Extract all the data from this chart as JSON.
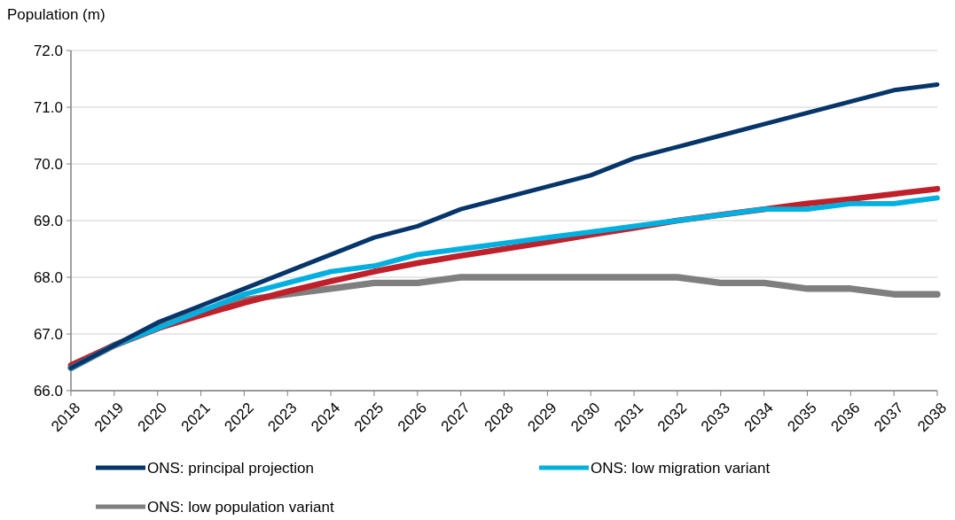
{
  "chart_data": {
    "type": "line",
    "ylabel": "Population (m)",
    "categories": [
      "2018",
      "2019",
      "2020",
      "2021",
      "2022",
      "2023",
      "2024",
      "2025",
      "2026",
      "2027",
      "2028",
      "2029",
      "2030",
      "2031",
      "2032",
      "2033",
      "2034",
      "2035",
      "2036",
      "2037",
      "2038"
    ],
    "ylim": [
      66,
      72
    ],
    "yticks": [
      {
        "value": 66,
        "label": "66.0"
      },
      {
        "value": 67,
        "label": "67.0"
      },
      {
        "value": 68,
        "label": "68.0"
      },
      {
        "value": 69,
        "label": "69.0"
      },
      {
        "value": 70,
        "label": "70.0"
      },
      {
        "value": 71,
        "label": "71.0"
      },
      {
        "value": 72,
        "label": "72.0"
      }
    ],
    "grid": "y",
    "legend": "bottom",
    "marker": "none",
    "line_style": "solid",
    "series": [
      {
        "name": "ONS: low population variant",
        "color": "#7f7f7f",
        "values": [
          66.4,
          66.8,
          67.1,
          67.4,
          67.6,
          67.7,
          67.8,
          67.9,
          67.9,
          68.0,
          68.0,
          68.0,
          68.0,
          68.0,
          68.0,
          67.9,
          67.9,
          67.8,
          67.8,
          67.7,
          67.7
        ]
      },
      {
        "color": "#c0202a",
        "values": [
          66.45,
          66.8,
          67.1,
          67.33,
          67.55,
          67.75,
          67.93,
          68.1,
          68.25,
          68.38,
          68.5,
          68.62,
          68.75,
          68.87,
          69.0,
          69.1,
          69.2,
          69.3,
          69.38,
          69.47,
          69.56
        ]
      },
      {
        "name": "ONS: low migration variant",
        "color": "#00b0e0",
        "values": [
          66.4,
          66.8,
          67.1,
          67.4,
          67.7,
          67.9,
          68.1,
          68.2,
          68.4,
          68.5,
          68.6,
          68.7,
          68.8,
          68.9,
          69.0,
          69.1,
          69.2,
          69.2,
          69.3,
          69.3,
          69.4
        ]
      },
      {
        "name": "ONS: principal projection",
        "color": "#06356a",
        "values": [
          66.4,
          66.8,
          67.2,
          67.5,
          67.8,
          68.1,
          68.4,
          68.7,
          68.9,
          69.2,
          69.4,
          69.6,
          69.8,
          70.1,
          70.3,
          70.5,
          70.7,
          70.9,
          71.1,
          71.3,
          71.4
        ]
      }
    ]
  }
}
